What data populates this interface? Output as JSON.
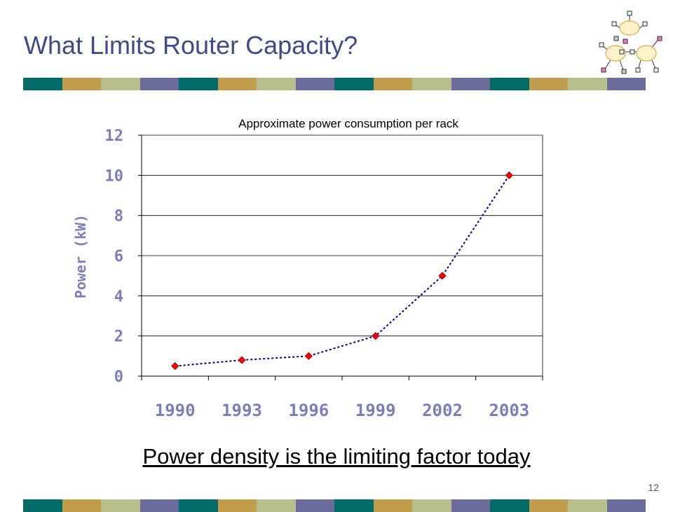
{
  "slide": {
    "title": "What Limits Router Capacity?",
    "caption": "Power density is the limiting factor today",
    "page_number": "12",
    "stripe_colors": [
      "#006b68",
      "#c19d4c",
      "#b9be8f",
      "#6c6c9c"
    ],
    "logo_icon": "network-cloud-icon"
  },
  "chart_data": {
    "type": "line",
    "title": "Approximate power consumption per rack",
    "xlabel": "",
    "ylabel": "Power (kW)",
    "categories": [
      "1990",
      "1993",
      "1996",
      "1999",
      "2002",
      "2003"
    ],
    "series": [
      {
        "values": [
          0.5,
          0.8,
          1.0,
          2.0,
          5.0,
          10.0
        ]
      }
    ],
    "ylim": [
      0,
      12
    ],
    "yticks": [
      "0",
      "2",
      "4",
      "6",
      "8",
      "10",
      "12"
    ],
    "grid": true,
    "line_color": "#000080",
    "marker_color": "#ff0000",
    "axis_text_color": "#7d7dbb"
  }
}
